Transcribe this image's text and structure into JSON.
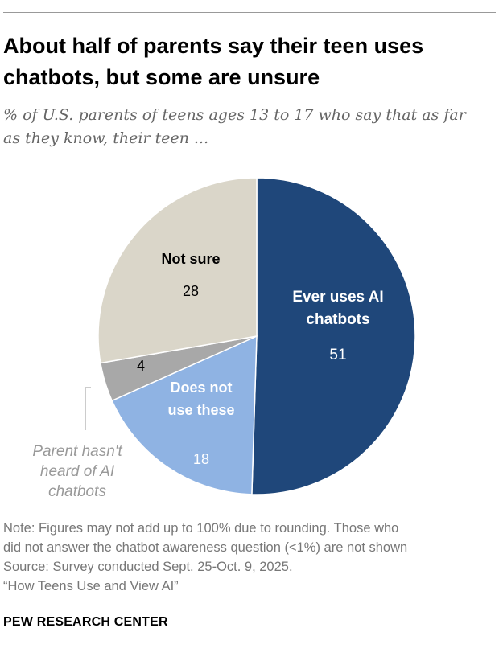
{
  "header": {
    "title": "About half of parents say their teen uses chatbots, but some are unsure",
    "subtitle": "% of U.S. parents of teens ages 13 to 17 who say that as far as they know, their teen ..."
  },
  "chart_data": {
    "type": "pie",
    "title": "About half of parents say their teen uses chatbots, but some are unsure",
    "subtitle": "% of U.S. parents of teens ages 13 to 17 who say that as far as they know, their teen ...",
    "slices": [
      {
        "label_lines": [
          "Ever uses AI",
          "chatbots"
        ],
        "value": 51,
        "color": "#1f477a",
        "label_color": "#ffffff"
      },
      {
        "label_lines": [
          "Does not",
          "use these"
        ],
        "value": 18,
        "color": "#8fb3e3",
        "label_color": "#ffffff"
      },
      {
        "label_lines": [
          "Parent hasn't",
          "heard of AI",
          "chatbots"
        ],
        "value": 4,
        "color": "#a8a8a8",
        "label_color": "#999999",
        "callout": true
      },
      {
        "label_lines": [
          "Not sure"
        ],
        "value": 28,
        "color": "#dad6c9",
        "label_color": "#000000"
      }
    ]
  },
  "footer": {
    "note_line1": "Note: Figures may not add up to 100% due to rounding. Those who",
    "note_line2": "did not answer the chatbot awareness question (<1%) are not shown",
    "source": "Source: Survey conducted Sept. 25-Oct. 9, 2025.",
    "report": "“How Teens Use and View AI”",
    "brand": "PEW RESEARCH CENTER"
  }
}
